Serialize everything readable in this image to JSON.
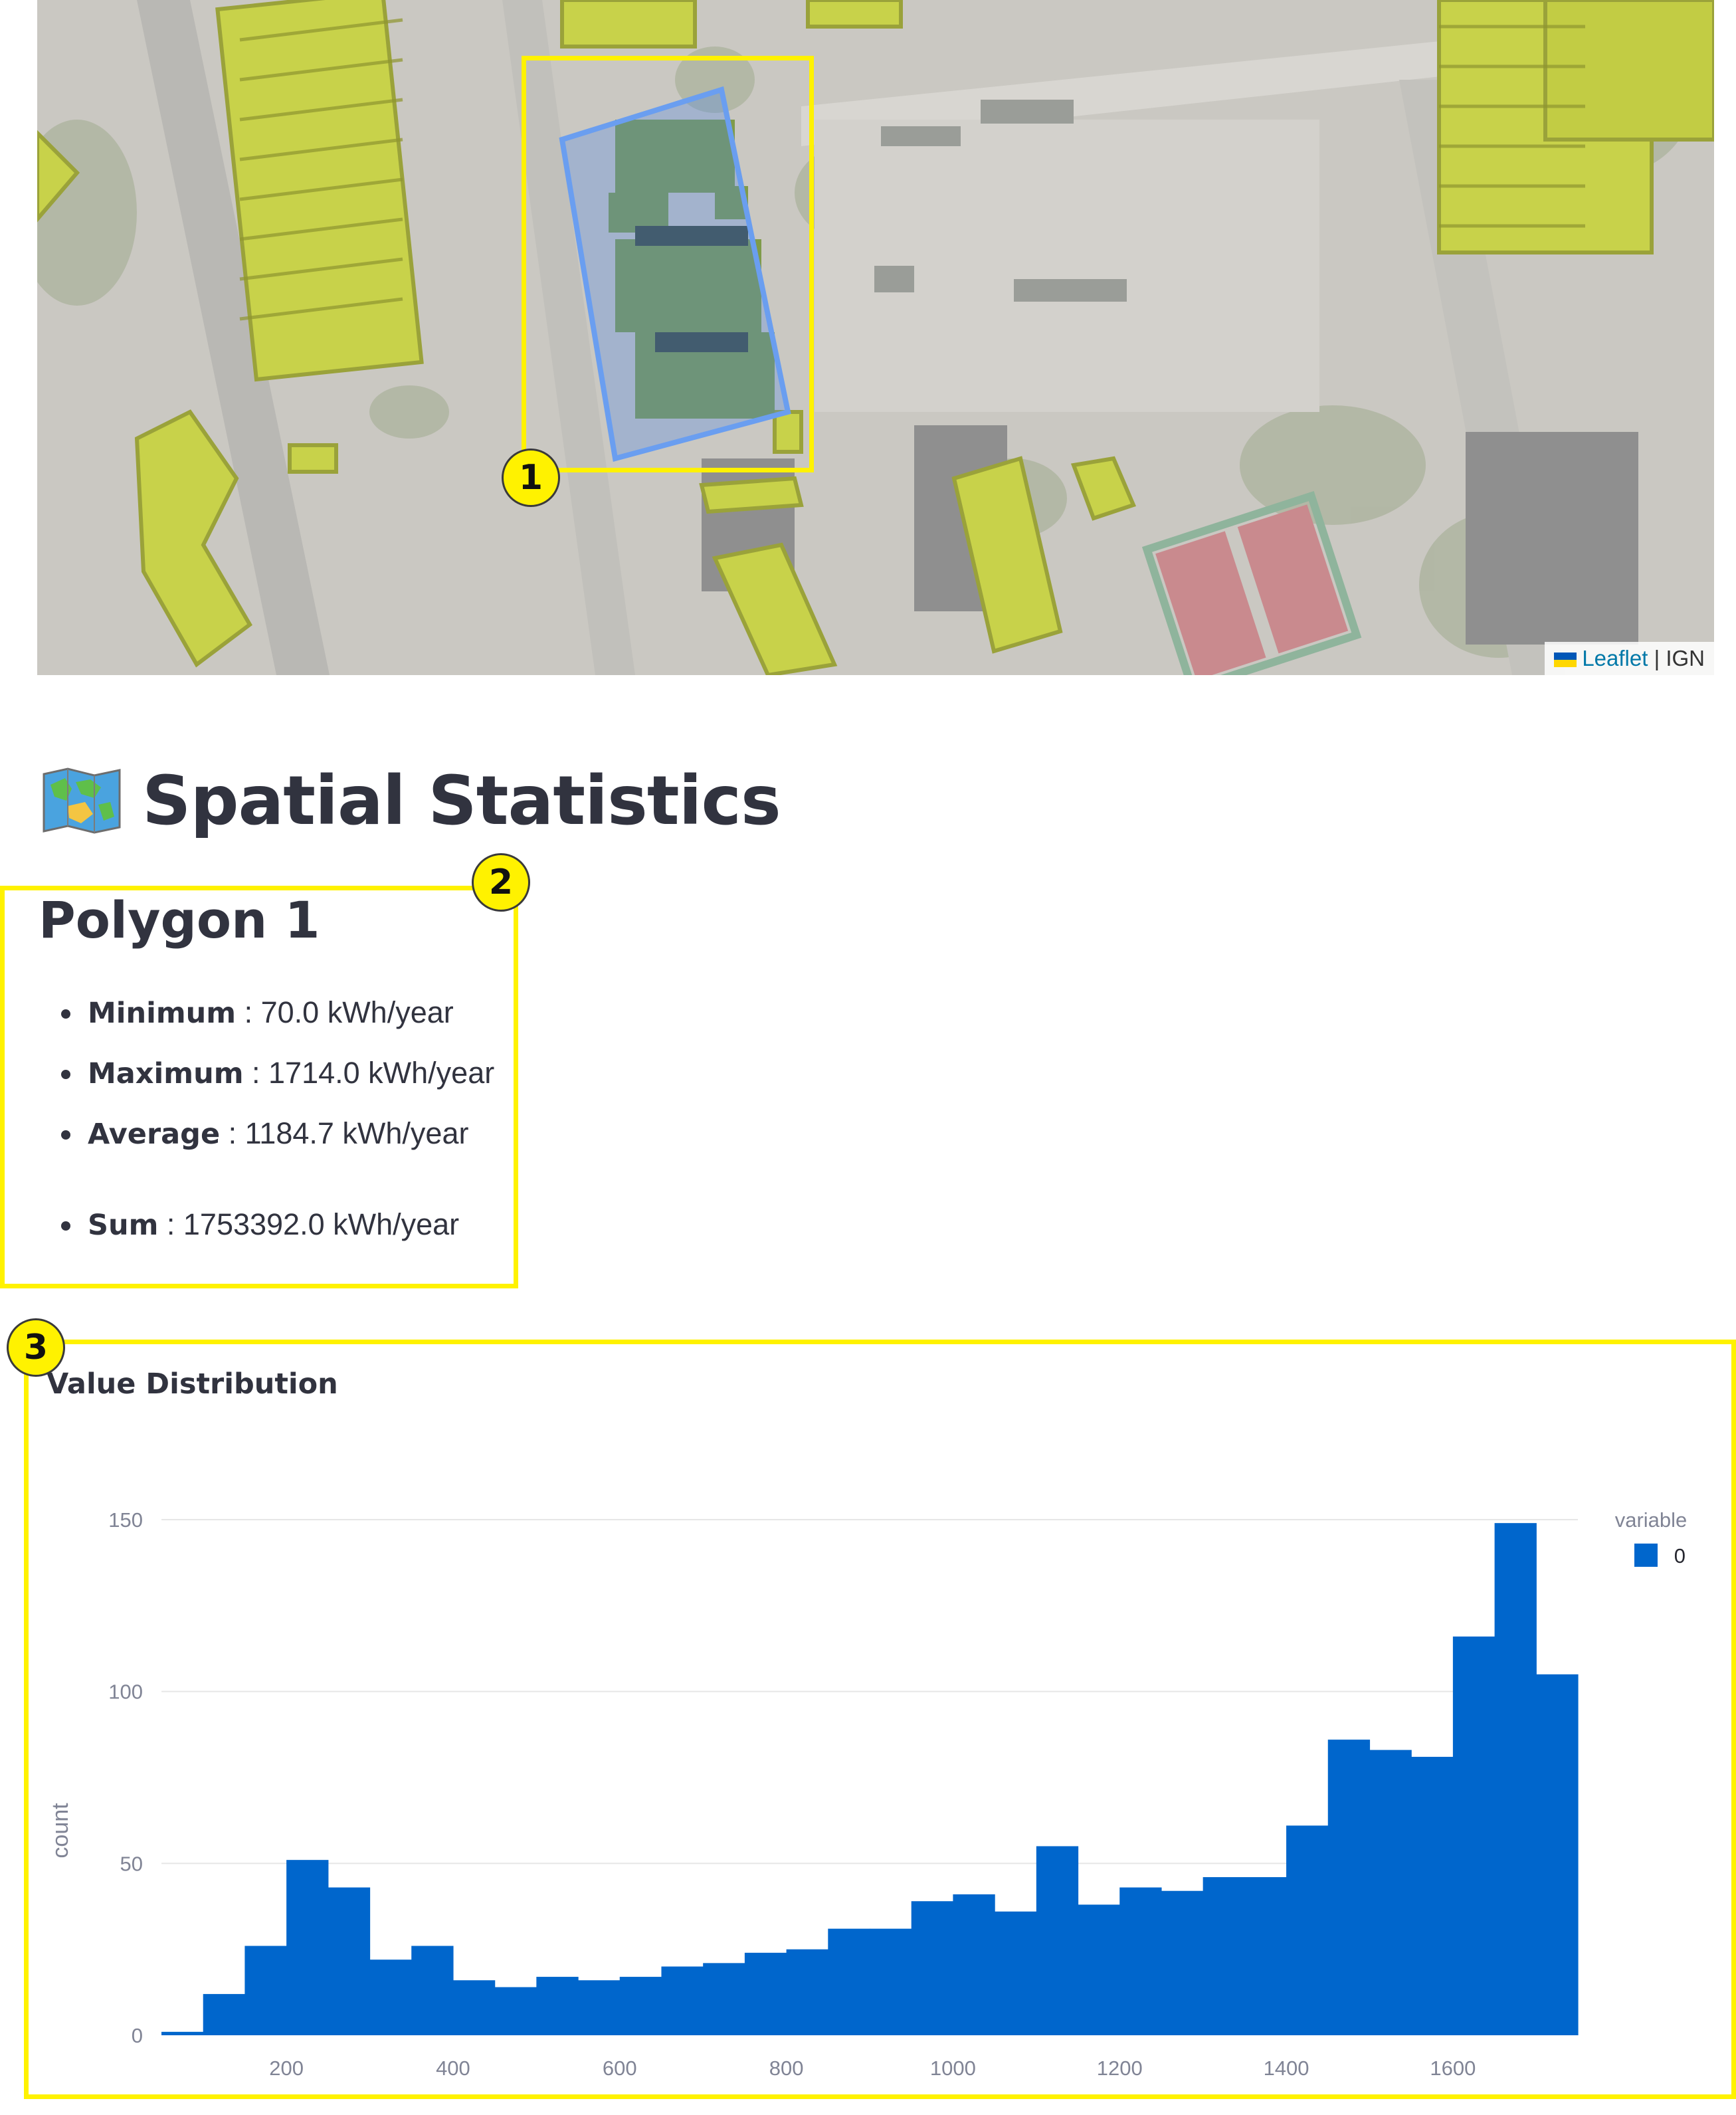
{
  "map": {
    "attribution": {
      "leaflet": "Leaflet",
      "separator": "|",
      "source": "IGN"
    },
    "markers": [
      {
        "label": "1"
      }
    ]
  },
  "stats_section": {
    "title": "Spatial Statistics",
    "icon": "world-map-icon",
    "markers": [
      {
        "label": "2"
      },
      {
        "label": "3"
      }
    ]
  },
  "polygon": {
    "title": "Polygon 1",
    "stats": [
      {
        "label": "Minimum",
        "value": " : 70.0 kWh/year"
      },
      {
        "label": "Maximum",
        "value": " : 1714.0 kWh/year"
      },
      {
        "label": "Average",
        "value": " : 1184.7 kWh/year"
      },
      {
        "label": "Sum",
        "value": " : 1753392.0 kWh/year"
      }
    ]
  },
  "chart_data": {
    "type": "bar",
    "title": "Value Distribution",
    "xlabel": "",
    "ylabel": "count",
    "bin_width": 50,
    "bin_start": [
      50,
      100,
      150,
      200,
      250,
      300,
      350,
      400,
      450,
      500,
      550,
      600,
      650,
      700,
      750,
      800,
      850,
      900,
      950,
      1000,
      1050,
      1100,
      1150,
      1200,
      1250,
      1300,
      1350,
      1400,
      1450,
      1500,
      1550,
      1600,
      1650,
      1700
    ],
    "values": [
      1,
      12,
      26,
      51,
      43,
      22,
      26,
      16,
      14,
      17,
      16,
      17,
      20,
      21,
      24,
      25,
      31,
      31,
      39,
      41,
      36,
      55,
      38,
      43,
      42,
      46,
      46,
      61,
      86,
      83,
      81,
      116,
      149,
      105
    ],
    "x_ticks": [
      200,
      400,
      600,
      800,
      1000,
      1200,
      1400,
      1600
    ],
    "y_ticks": [
      0,
      50,
      100,
      150
    ],
    "xlim": [
      50,
      1750
    ],
    "ylim": [
      0,
      150
    ],
    "legend": {
      "title": "variable",
      "entries": [
        "0"
      ],
      "position": "top-right"
    },
    "grid": true,
    "colors": {
      "bar": "#0066cc",
      "grid": "#e6e6e6",
      "tick_text": "#808495"
    }
  },
  "colors": {
    "highlight": "#fff200",
    "text": "#31333f"
  }
}
